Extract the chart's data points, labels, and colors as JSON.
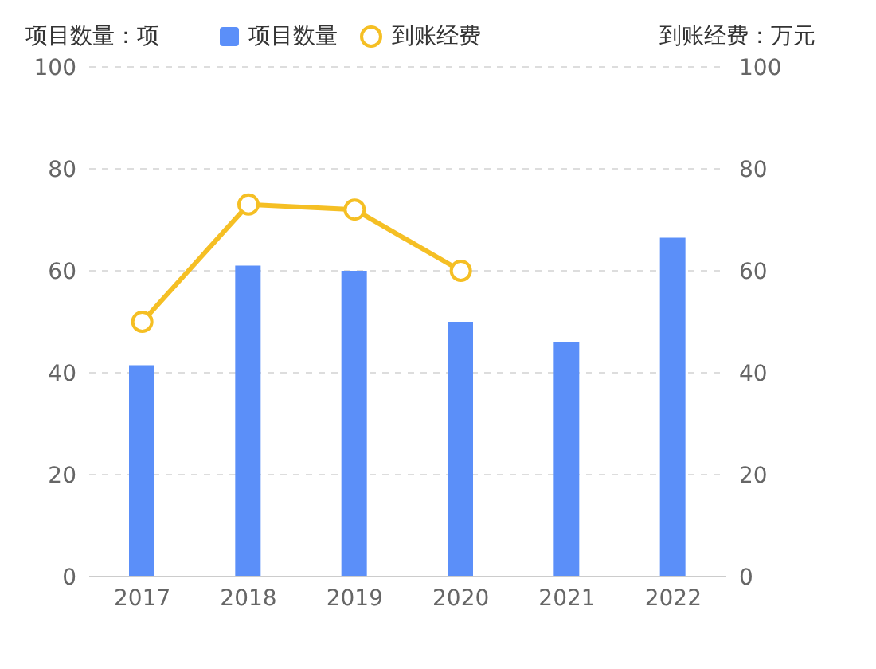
{
  "chart_data": {
    "type": "bar",
    "categories": [
      "2017",
      "2018",
      "2019",
      "2020",
      "2021",
      "2022"
    ],
    "series": [
      {
        "name": "项目数量",
        "color": "#5b8ff9",
        "values": [
          41.5,
          61,
          60,
          50,
          46,
          66.5
        ]
      },
      {
        "name": "到账经费",
        "type": "line",
        "axis": "y2",
        "color": "#f5bf24",
        "marker": "circle",
        "values": [
          50,
          73,
          72,
          60,
          null,
          null
        ]
      }
    ],
    "ylabel": "项目数量：项",
    "y2label": "到账经费：万元",
    "ylim": [
      0,
      100
    ],
    "yticks": [
      0,
      20,
      40,
      60,
      80,
      100
    ],
    "y2lim": [
      0,
      100
    ],
    "y2ticks": [
      0,
      20,
      40,
      60,
      80,
      100
    ],
    "grid": "y",
    "legend": "top"
  }
}
